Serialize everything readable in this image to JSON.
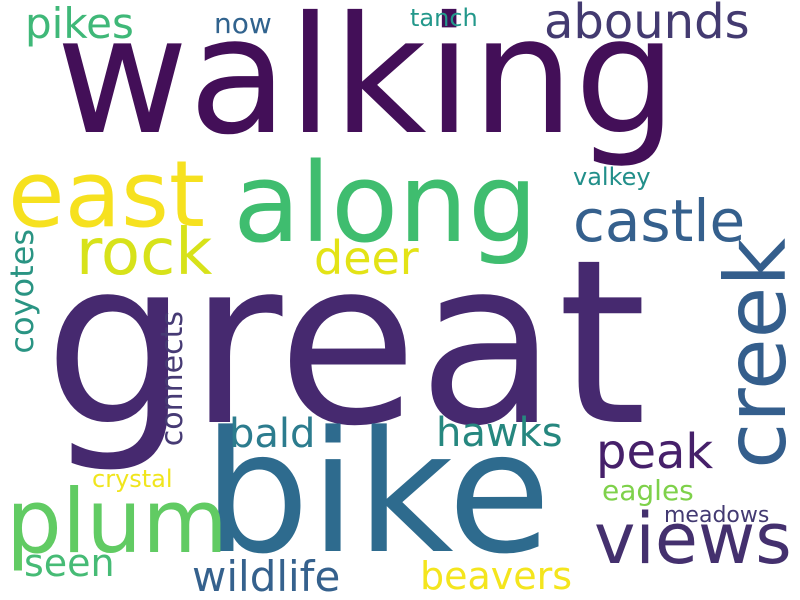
{
  "background": "#ffffff",
  "words": [
    {
      "text": "great",
      "color": "#46296f"
    },
    {
      "text": "walking",
      "color": "#430f58"
    },
    {
      "text": "bike",
      "color": "#2e6b8e"
    },
    {
      "text": "along",
      "color": "#3fbd6f"
    },
    {
      "text": "east",
      "color": "#f6e11f"
    },
    {
      "text": "creek",
      "color": "#345e8c"
    },
    {
      "text": "views",
      "color": "#44306e"
    },
    {
      "text": "plum",
      "color": "#61cb63"
    },
    {
      "text": "castle",
      "color": "#35608d"
    },
    {
      "text": "rock",
      "color": "#d7e21a"
    },
    {
      "text": "abounds",
      "color": "#433a70"
    },
    {
      "text": "peak",
      "color": "#46206a"
    },
    {
      "text": "deer",
      "color": "#e3e316"
    },
    {
      "text": "wildlife",
      "color": "#35618d"
    },
    {
      "text": "beavers",
      "color": "#f4e51d"
    },
    {
      "text": "hawks",
      "color": "#26877f"
    },
    {
      "text": "bald",
      "color": "#2c7c8e"
    },
    {
      "text": "seen",
      "color": "#46bb75"
    },
    {
      "text": "coyotes",
      "color": "#2a9483"
    },
    {
      "text": "connects",
      "color": "#463a74"
    },
    {
      "text": "pikes",
      "color": "#3fb878"
    },
    {
      "text": "eagles",
      "color": "#7ed14a"
    },
    {
      "text": "now",
      "color": "#31638e"
    },
    {
      "text": "tanch",
      "color": "#23988b"
    },
    {
      "text": "valkey",
      "color": "#228f8a"
    },
    {
      "text": "crystal",
      "color": "#f0e51d"
    },
    {
      "text": "meadows",
      "color": "#433a72"
    }
  ]
}
